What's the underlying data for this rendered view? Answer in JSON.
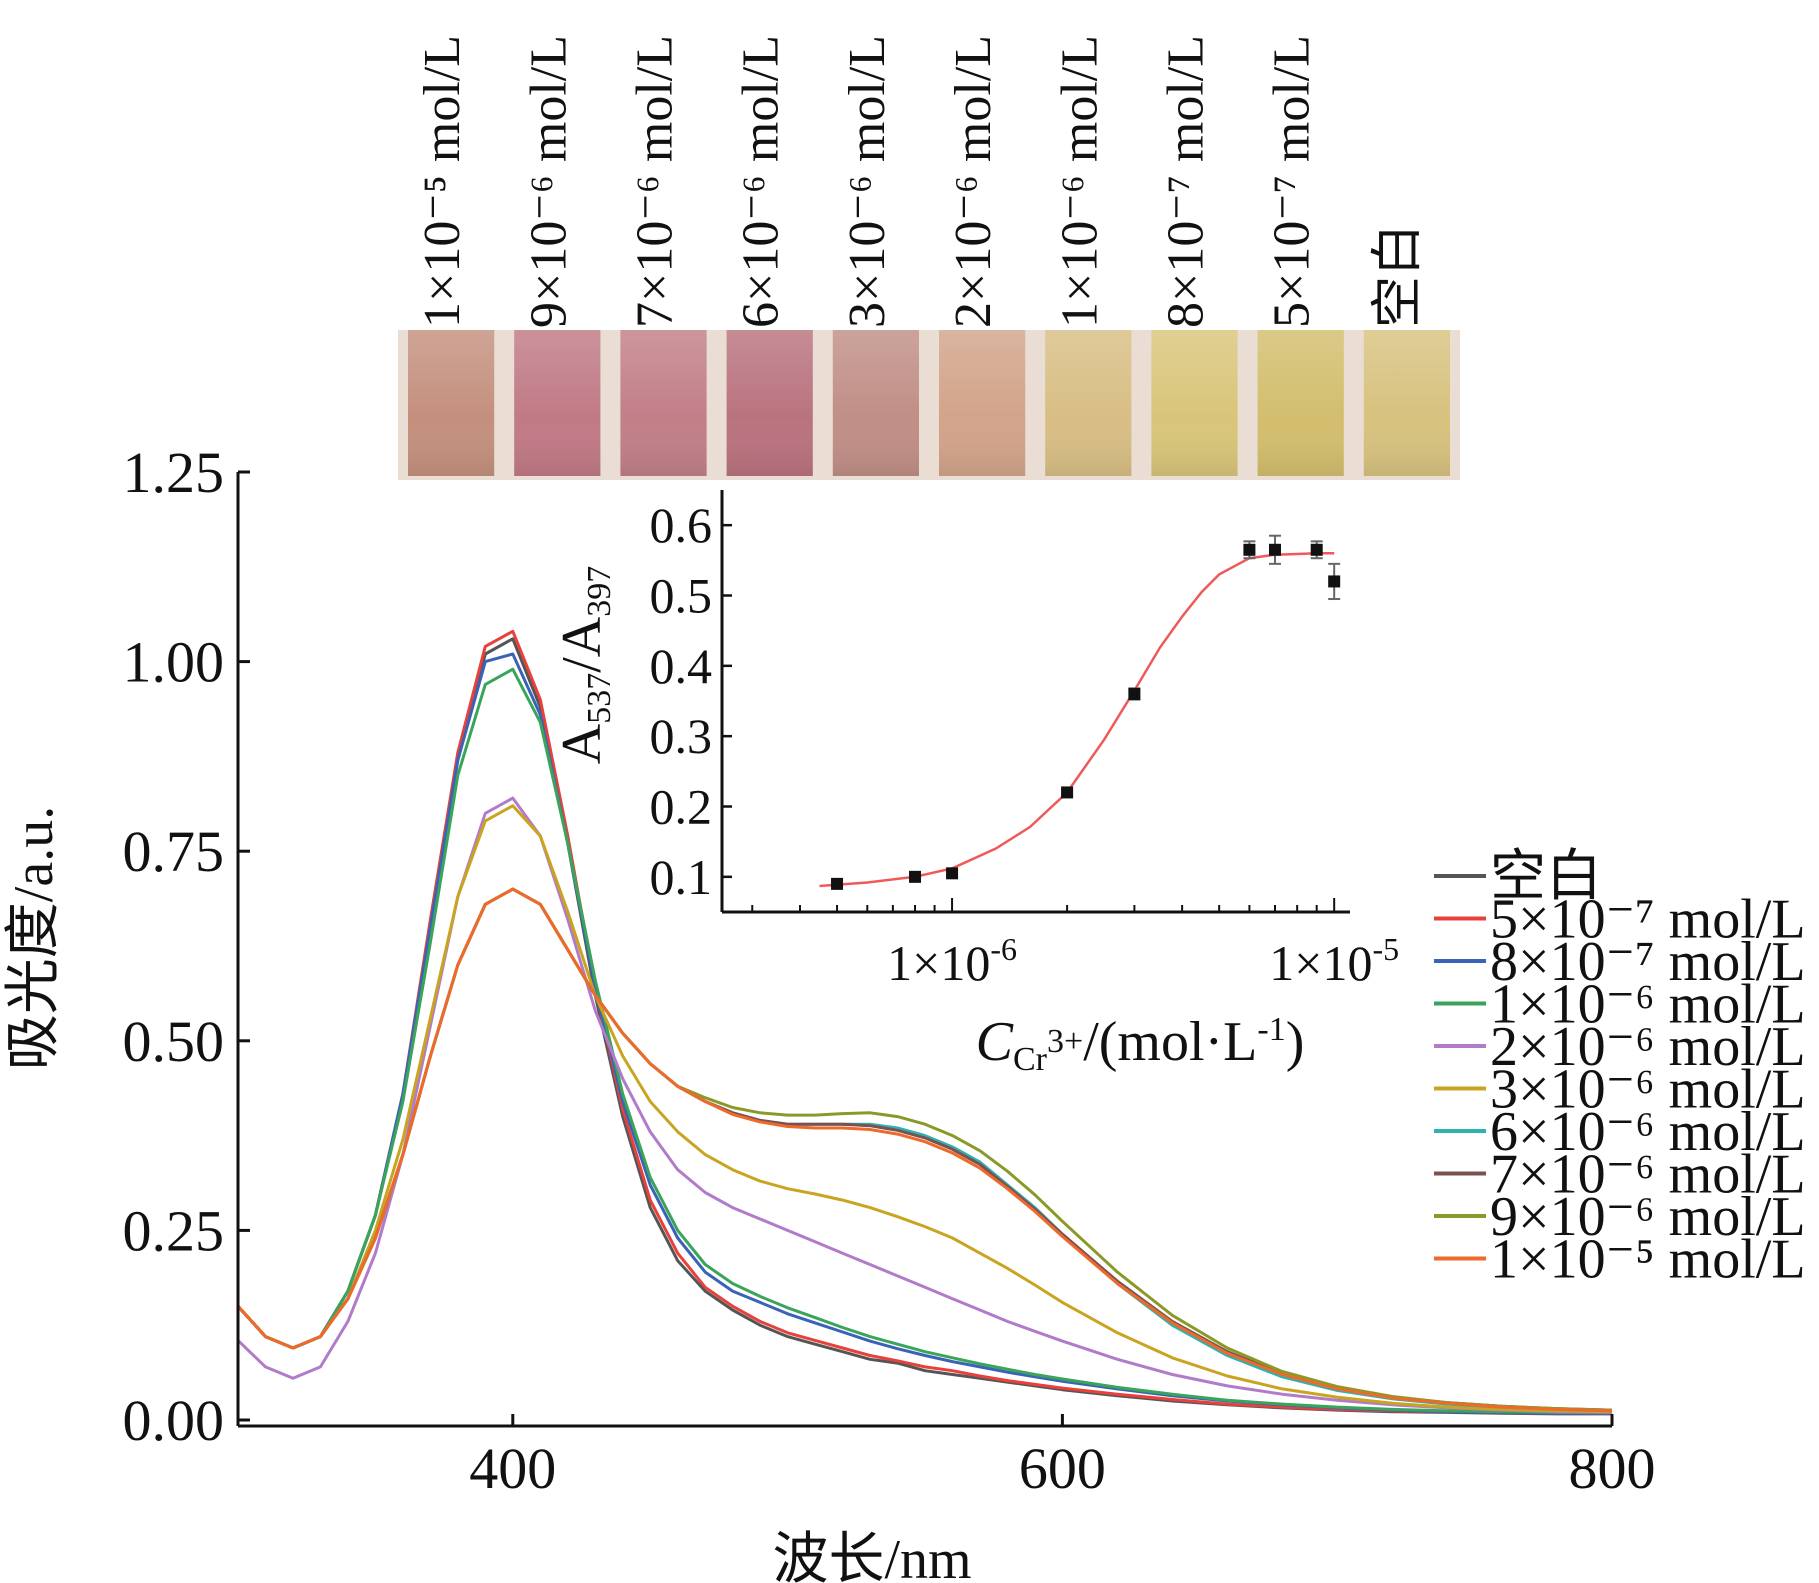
{
  "photo": {
    "labels": [
      "1×10⁻⁵ mol/L",
      "9×10⁻⁶ mol/L",
      "7×10⁻⁶ mol/L",
      "6×10⁻⁶ mol/L",
      "3×10⁻⁶ mol/L",
      "2×10⁻⁶ mol/L",
      "1×10⁻⁶ mol/L",
      "8×10⁻⁷ mol/L",
      "5×10⁻⁷ mol/L",
      "空白"
    ],
    "vial_colors": [
      "#c4907e",
      "#c07a86",
      "#c27f88",
      "#b9737f",
      "#c08f86",
      "#d2a48a",
      "#d8be84",
      "#d9c57a",
      "#d3be6e",
      "#d7c27f"
    ],
    "background_color": "#e9ddd4"
  },
  "chart_data": [
    {
      "type": "line",
      "title": "",
      "xlabel": "波长/nm",
      "ylabel": "吸光度/a.u.",
      "xlim": [
        300,
        800
      ],
      "ylim": [
        0,
        1.25
      ],
      "xticks": [
        400,
        600,
        800
      ],
      "yticks": [
        0.0,
        0.25,
        0.5,
        0.75,
        1.0,
        1.25
      ],
      "xtick_labels": [
        "400",
        "600",
        "800"
      ],
      "ytick_labels": [
        "0.00",
        "0.25",
        "0.50",
        "0.75",
        "1.00",
        "1.25"
      ],
      "legend_position": "right",
      "x": [
        300,
        310,
        320,
        330,
        340,
        350,
        360,
        370,
        380,
        390,
        400,
        410,
        420,
        430,
        440,
        450,
        460,
        470,
        480,
        490,
        500,
        510,
        520,
        530,
        540,
        550,
        560,
        570,
        580,
        590,
        600,
        620,
        640,
        660,
        680,
        700,
        720,
        740,
        760,
        780,
        800
      ],
      "series": [
        {
          "name": "空白",
          "color": "#555555",
          "values": [
            0.15,
            0.11,
            0.095,
            0.11,
            0.17,
            0.27,
            0.43,
            0.65,
            0.87,
            1.01,
            1.03,
            0.94,
            0.76,
            0.56,
            0.4,
            0.28,
            0.21,
            0.17,
            0.145,
            0.125,
            0.11,
            0.1,
            0.09,
            0.08,
            0.075,
            0.065,
            0.06,
            0.055,
            0.05,
            0.045,
            0.04,
            0.032,
            0.025,
            0.02,
            0.016,
            0.013,
            0.011,
            0.01,
            0.009,
            0.008,
            0.008
          ]
        },
        {
          "name": "5×10⁻⁷ mol/L",
          "color": "#e8413c",
          "values": [
            0.15,
            0.11,
            0.095,
            0.11,
            0.17,
            0.27,
            0.43,
            0.66,
            0.88,
            1.02,
            1.04,
            0.95,
            0.77,
            0.57,
            0.41,
            0.29,
            0.22,
            0.175,
            0.15,
            0.13,
            0.115,
            0.105,
            0.095,
            0.085,
            0.078,
            0.07,
            0.065,
            0.058,
            0.052,
            0.047,
            0.042,
            0.034,
            0.027,
            0.021,
            0.017,
            0.014,
            0.012,
            0.011,
            0.01,
            0.009,
            0.009
          ]
        },
        {
          "name": "8×10⁻⁷ mol/L",
          "color": "#3a63b8",
          "values": [
            0.15,
            0.11,
            0.095,
            0.11,
            0.17,
            0.27,
            0.43,
            0.65,
            0.87,
            1.0,
            1.01,
            0.93,
            0.76,
            0.57,
            0.42,
            0.31,
            0.24,
            0.195,
            0.17,
            0.155,
            0.14,
            0.128,
            0.116,
            0.104,
            0.094,
            0.085,
            0.077,
            0.07,
            0.063,
            0.057,
            0.051,
            0.041,
            0.032,
            0.025,
            0.02,
            0.016,
            0.013,
            0.011,
            0.01,
            0.009,
            0.009
          ]
        },
        {
          "name": "1×10⁻⁶ mol/L",
          "color": "#3aa55a",
          "values": [
            0.15,
            0.11,
            0.095,
            0.11,
            0.17,
            0.27,
            0.42,
            0.63,
            0.85,
            0.97,
            0.99,
            0.92,
            0.76,
            0.58,
            0.43,
            0.32,
            0.25,
            0.205,
            0.18,
            0.163,
            0.148,
            0.135,
            0.122,
            0.11,
            0.1,
            0.09,
            0.082,
            0.074,
            0.067,
            0.06,
            0.054,
            0.043,
            0.034,
            0.026,
            0.021,
            0.017,
            0.014,
            0.012,
            0.011,
            0.01,
            0.01
          ]
        },
        {
          "name": "2×10⁻⁶ mol/L",
          "color": "#b17bc9",
          "values": [
            0.105,
            0.07,
            0.055,
            0.07,
            0.13,
            0.22,
            0.35,
            0.52,
            0.69,
            0.8,
            0.82,
            0.77,
            0.66,
            0.54,
            0.45,
            0.38,
            0.33,
            0.3,
            0.28,
            0.265,
            0.25,
            0.235,
            0.22,
            0.205,
            0.19,
            0.175,
            0.16,
            0.145,
            0.13,
            0.117,
            0.104,
            0.08,
            0.06,
            0.045,
            0.034,
            0.026,
            0.02,
            0.016,
            0.013,
            0.011,
            0.01
          ]
        },
        {
          "name": "3×10⁻⁶ mol/L",
          "color": "#c9a420",
          "values": [
            0.15,
            0.11,
            0.095,
            0.11,
            0.16,
            0.25,
            0.37,
            0.53,
            0.69,
            0.79,
            0.81,
            0.77,
            0.67,
            0.56,
            0.48,
            0.42,
            0.38,
            0.35,
            0.33,
            0.315,
            0.305,
            0.298,
            0.29,
            0.28,
            0.268,
            0.255,
            0.24,
            0.22,
            0.2,
            0.178,
            0.155,
            0.115,
            0.082,
            0.058,
            0.041,
            0.03,
            0.022,
            0.017,
            0.014,
            0.012,
            0.011
          ]
        },
        {
          "name": "6×10⁻⁶ mol/L",
          "color": "#2cb3b0",
          "values": [
            0.15,
            0.11,
            0.095,
            0.11,
            0.16,
            0.24,
            0.35,
            0.48,
            0.6,
            0.68,
            0.7,
            0.68,
            0.62,
            0.56,
            0.51,
            0.47,
            0.44,
            0.42,
            0.405,
            0.395,
            0.39,
            0.39,
            0.39,
            0.39,
            0.385,
            0.375,
            0.36,
            0.34,
            0.31,
            0.28,
            0.245,
            0.18,
            0.125,
            0.085,
            0.057,
            0.039,
            0.028,
            0.021,
            0.017,
            0.014,
            0.012
          ]
        },
        {
          "name": "7×10⁻⁶ mol/L",
          "color": "#7a5050",
          "values": [
            0.15,
            0.11,
            0.095,
            0.11,
            0.16,
            0.24,
            0.35,
            0.48,
            0.6,
            0.68,
            0.7,
            0.68,
            0.62,
            0.56,
            0.51,
            0.47,
            0.44,
            0.42,
            0.405,
            0.395,
            0.39,
            0.39,
            0.39,
            0.388,
            0.382,
            0.372,
            0.357,
            0.337,
            0.308,
            0.278,
            0.245,
            0.183,
            0.13,
            0.09,
            0.061,
            0.042,
            0.03,
            0.023,
            0.018,
            0.015,
            0.013
          ]
        },
        {
          "name": "9×10⁻⁶ mol/L",
          "color": "#8a9a28",
          "values": [
            0.15,
            0.11,
            0.095,
            0.11,
            0.16,
            0.24,
            0.35,
            0.48,
            0.6,
            0.68,
            0.7,
            0.68,
            0.62,
            0.56,
            0.51,
            0.47,
            0.44,
            0.425,
            0.412,
            0.405,
            0.402,
            0.402,
            0.404,
            0.405,
            0.4,
            0.39,
            0.375,
            0.355,
            0.328,
            0.297,
            0.262,
            0.195,
            0.138,
            0.095,
            0.064,
            0.044,
            0.031,
            0.023,
            0.018,
            0.015,
            0.013
          ]
        },
        {
          "name": "1×10⁻⁵ mol/L",
          "color": "#ef6a2a",
          "values": [
            0.15,
            0.11,
            0.095,
            0.11,
            0.16,
            0.24,
            0.35,
            0.48,
            0.6,
            0.68,
            0.7,
            0.68,
            0.62,
            0.56,
            0.51,
            0.47,
            0.44,
            0.42,
            0.403,
            0.393,
            0.387,
            0.385,
            0.385,
            0.383,
            0.377,
            0.367,
            0.352,
            0.332,
            0.305,
            0.275,
            0.242,
            0.18,
            0.128,
            0.088,
            0.06,
            0.041,
            0.029,
            0.022,
            0.017,
            0.014,
            0.012
          ]
        }
      ]
    },
    {
      "type": "scatter",
      "title": "",
      "xlabel": "CCr3+/(mol·L-1)",
      "ylabel": "A537/A397",
      "xscale": "log",
      "xlim": [
        2.5e-07,
        1.1e-05
      ],
      "ylim": [
        0.05,
        0.65
      ],
      "xticks": [
        1e-06,
        1e-05
      ],
      "xtick_labels": [
        "1×10-6",
        "1×10-5"
      ],
      "yticks": [
        0.1,
        0.2,
        0.3,
        0.4,
        0.5,
        0.6
      ],
      "ytick_labels": [
        "0.1",
        "0.2",
        "0.3",
        "0.4",
        "0.5",
        "0.6"
      ],
      "points": {
        "x": [
          5e-07,
          8e-07,
          1e-06,
          2e-06,
          3e-06,
          6e-06,
          7e-06,
          9e-06,
          1e-05
        ],
        "y": [
          0.09,
          0.1,
          0.105,
          0.22,
          0.36,
          0.565,
          0.565,
          0.565,
          0.52
        ],
        "error": [
          0.004,
          0.005,
          0.004,
          0.004,
          0.008,
          0.012,
          0.02,
          0.012,
          0.025
        ]
      },
      "fit": {
        "type": "sigmoid",
        "color": "#ee5a5a",
        "x": [
          4.5e-07,
          6e-07,
          8e-07,
          1e-06,
          1.3e-06,
          1.6e-06,
          2e-06,
          2.5e-06,
          3e-06,
          3.5e-06,
          4e-06,
          4.5e-06,
          5e-06,
          6e-06,
          7e-06,
          8e-06,
          9e-06,
          1e-05
        ],
        "y": [
          0.087,
          0.092,
          0.1,
          0.112,
          0.14,
          0.171,
          0.22,
          0.295,
          0.365,
          0.426,
          0.47,
          0.505,
          0.53,
          0.553,
          0.558,
          0.559,
          0.56,
          0.56
        ]
      }
    }
  ]
}
